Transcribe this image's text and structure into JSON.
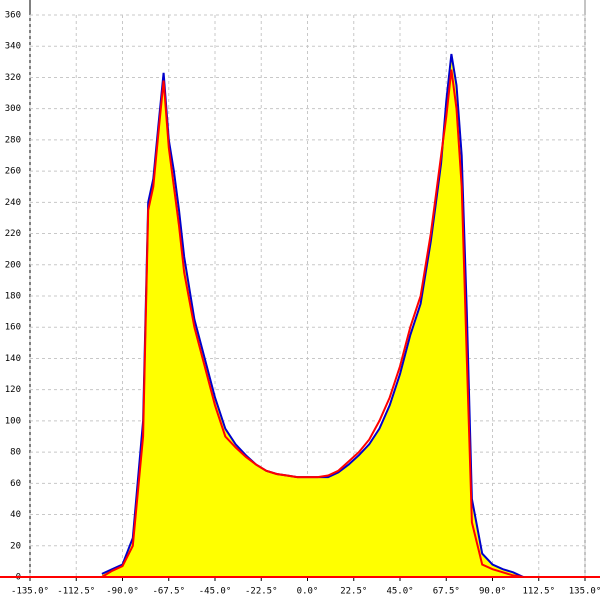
{
  "chart_data": {
    "type": "area",
    "x": [
      -100,
      -95,
      -90,
      -85,
      -80,
      -77.5,
      -75,
      -72.5,
      -70,
      -67.5,
      -65,
      -62.5,
      -60,
      -55,
      -50,
      -45,
      -40,
      -35,
      -30,
      -25,
      -20,
      -15,
      -10,
      -5,
      0,
      5,
      10,
      15,
      20,
      25,
      30,
      35,
      40,
      45,
      50,
      55,
      60,
      62.5,
      65,
      67.5,
      70,
      72.5,
      75,
      77.5,
      80,
      85,
      90,
      95,
      100,
      105
    ],
    "series": [
      {
        "color": "#0000cc",
        "fill": "#ffff00",
        "values": [
          2,
          5,
          8,
          25,
          100,
          240,
          255,
          290,
          323,
          280,
          260,
          235,
          205,
          165,
          140,
          115,
          95,
          85,
          78,
          72,
          68,
          66,
          65,
          64,
          64,
          64,
          64,
          67,
          72,
          78,
          85,
          95,
          110,
          130,
          155,
          175,
          215,
          240,
          265,
          305,
          335,
          315,
          270,
          170,
          50,
          15,
          8,
          5,
          3,
          0
        ]
      },
      {
        "color": "#ff0000",
        "values": [
          0,
          4,
          7,
          20,
          90,
          235,
          250,
          285,
          318,
          275,
          250,
          225,
          195,
          160,
          135,
          110,
          90,
          83,
          77,
          72,
          68,
          66,
          65,
          64,
          64,
          64,
          65,
          68,
          74,
          80,
          88,
          100,
          115,
          135,
          160,
          180,
          220,
          245,
          270,
          295,
          325,
          300,
          250,
          140,
          35,
          8,
          5,
          3,
          1,
          0
        ]
      }
    ],
    "xlim": [
      -135,
      135
    ],
    "xticks": [
      {
        "value": -135,
        "label": "-135.0°"
      },
      {
        "value": -112.5,
        "label": "-112.5°"
      },
      {
        "value": -90,
        "label": "-90.0°"
      },
      {
        "value": -67.5,
        "label": "-67.5°"
      },
      {
        "value": -45,
        "label": "-45.0°"
      },
      {
        "value": -22.5,
        "label": "-22.5°"
      },
      {
        "value": 0,
        "label": "0.0°"
      },
      {
        "value": 22.5,
        "label": "22.5°"
      },
      {
        "value": 45,
        "label": "45.0°"
      },
      {
        "value": 67.5,
        "label": "67.5°"
      },
      {
        "value": 90,
        "label": "90.0°"
      },
      {
        "value": 112.5,
        "label": "112.5°"
      },
      {
        "value": 135,
        "label": "135.0°"
      }
    ],
    "ylim": [
      0,
      360
    ],
    "yticks": [
      0,
      20,
      40,
      60,
      80,
      100,
      120,
      140,
      160,
      180,
      200,
      220,
      240,
      260,
      280,
      300,
      320,
      340,
      360
    ],
    "grid": true
  }
}
